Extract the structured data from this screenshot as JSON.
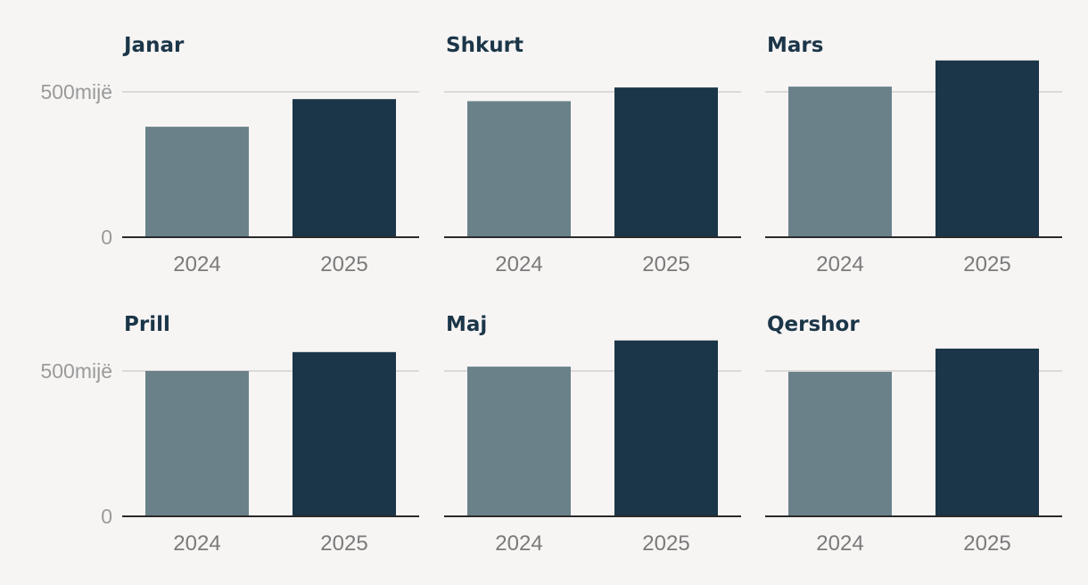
{
  "chart_data": [
    {
      "type": "bar",
      "title": "Janar",
      "categories": [
        "2024",
        "2025"
      ],
      "values": [
        380000,
        475000
      ],
      "yticks": [
        {
          "value": 0,
          "label": "0"
        },
        {
          "value": 500000,
          "label": "500mijë"
        }
      ],
      "ylim": [
        0,
        600000
      ],
      "grid": true,
      "colors": [
        "#6a818a",
        "#1b3648"
      ]
    },
    {
      "type": "bar",
      "title": "Shkurt",
      "categories": [
        "2024",
        "2025"
      ],
      "values": [
        468000,
        515000
      ],
      "yticks": [
        {
          "value": 0,
          "label": "0"
        },
        {
          "value": 500000,
          "label": "500mijë"
        }
      ],
      "ylim": [
        0,
        600000
      ],
      "grid": true,
      "colors": [
        "#6a818a",
        "#1b3648"
      ]
    },
    {
      "type": "bar",
      "title": "Mars",
      "categories": [
        "2024",
        "2025"
      ],
      "values": [
        518000,
        608000
      ],
      "yticks": [
        {
          "value": 0,
          "label": "0"
        },
        {
          "value": 500000,
          "label": "500mijë"
        }
      ],
      "ylim": [
        0,
        600000
      ],
      "grid": true,
      "colors": [
        "#6a818a",
        "#1b3648"
      ]
    },
    {
      "type": "bar",
      "title": "Prill",
      "categories": [
        "2024",
        "2025"
      ],
      "values": [
        500000,
        565000
      ],
      "yticks": [
        {
          "value": 0,
          "label": "0"
        },
        {
          "value": 500000,
          "label": "500mijë"
        }
      ],
      "ylim": [
        0,
        600000
      ],
      "grid": true,
      "colors": [
        "#6a818a",
        "#1b3648"
      ]
    },
    {
      "type": "bar",
      "title": "Maj",
      "categories": [
        "2024",
        "2025"
      ],
      "values": [
        515000,
        605000
      ],
      "yticks": [
        {
          "value": 0,
          "label": "0"
        },
        {
          "value": 500000,
          "label": "500mijë"
        }
      ],
      "ylim": [
        0,
        600000
      ],
      "grid": true,
      "colors": [
        "#6a818a",
        "#1b3648"
      ]
    },
    {
      "type": "bar",
      "title": "Qershor",
      "categories": [
        "2024",
        "2025"
      ],
      "values": [
        497000,
        577000
      ],
      "yticks": [
        {
          "value": 0,
          "label": "0"
        },
        {
          "value": 500000,
          "label": "500mijë"
        }
      ],
      "ylim": [
        0,
        600000
      ],
      "grid": true,
      "colors": [
        "#6a818a",
        "#1b3648"
      ]
    }
  ]
}
